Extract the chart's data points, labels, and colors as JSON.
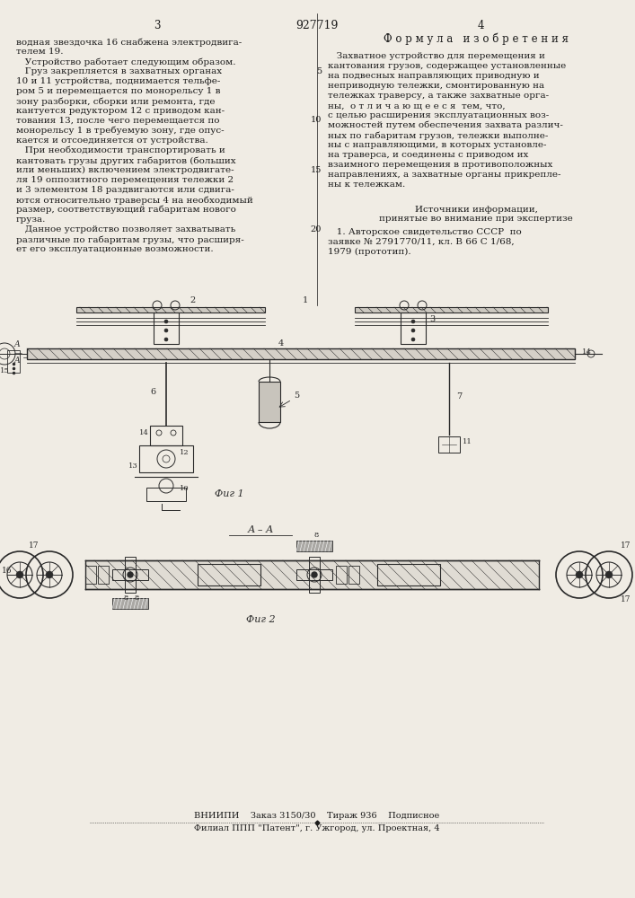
{
  "page_color": "#f0ece4",
  "text_color": "#1a1a1a",
  "title_patent_number": "927719",
  "col_left_number": "3",
  "col_right_number": "4",
  "formula_title": "Ф о р м у л а   и з о б р е т е н и я",
  "left_col_text": [
    "водная звездочка 16 снабжена электродвига-",
    "телем 19.",
    "   Устройство работает следующим образом.",
    "   Груз закрепляется в захватных органах",
    "10 и 11 устройства, поднимается тельфе-",
    "ром 5 и перемещается по монорельсу 1 в",
    "зону разборки, сборки или ремонта, где",
    "кантуется редуктором 12 с приводом кан-",
    "тования 13, после чего перемещается по",
    "монорельсу 1 в требуемую зону, где опус-",
    "кается и отсоединяется от устройства.",
    "   При необходимости транспортировать и",
    "кантовать грузы других габаритов (больших",
    "или меньших) включением электродвигате-",
    "ля 19 оппозитного перемещения тележки 2",
    "и 3 элементом 18 раздвигаются или сдвига-",
    "ются относительно траверсы 4 на необходимый",
    "размер, соответствующий габаритам нового",
    "груза.",
    "   Данное устройство позволяет захватывать",
    "различные по габаритам грузы, что расширя-",
    "ет его эксплуатационные возможности."
  ],
  "right_col_text_lines": [
    "   Захватное устройство для перемещения и",
    "кантования грузов, содержащее установленные",
    "на подвесных направляющих приводную и",
    "неприводную тележки, смонтированную на",
    "тележках траверсу, а также захватные орга-",
    "ны,  о т л и ч а ю щ е е с я  тем, что,",
    "с целью расширения эксплуатационных воз-",
    "можностей путем обеспечения захвата различ-",
    "ных по габаритам грузов, тележки выполне-",
    "ны с направляющими, в которых установле-",
    "на траверса, и соединены с приводом их",
    "взаимного перемещения в противоположных",
    "направлениях, а захватные органы прикрепле-",
    "ны к тележкам."
  ],
  "sources_title": "Источники информации,",
  "sources_subtitle": "принятые во внимание при экспертизе",
  "source_1": "   1. Авторское свидетельство СССР  по",
  "source_2": "заявке № 2791770/11, кл. В 66 С 1/68,",
  "source_3": "1979 (прототип).",
  "line_numbers_right": [
    "5",
    "10",
    "15",
    "20"
  ],
  "fig1_label": "Фиг 1",
  "fig2_label": "Фиг 2",
  "section_label": "A-A",
  "bottom_line1": "ВНИИПИ    Заказ 3150/30    Тираж 936    Подписное",
  "bottom_line2": "Филиал ППП \"Патент\", г. Ужгород, ул. Проектная, 4",
  "font_size_body": 7.5,
  "font_size_small": 7.0,
  "font_size_header": 8.5
}
